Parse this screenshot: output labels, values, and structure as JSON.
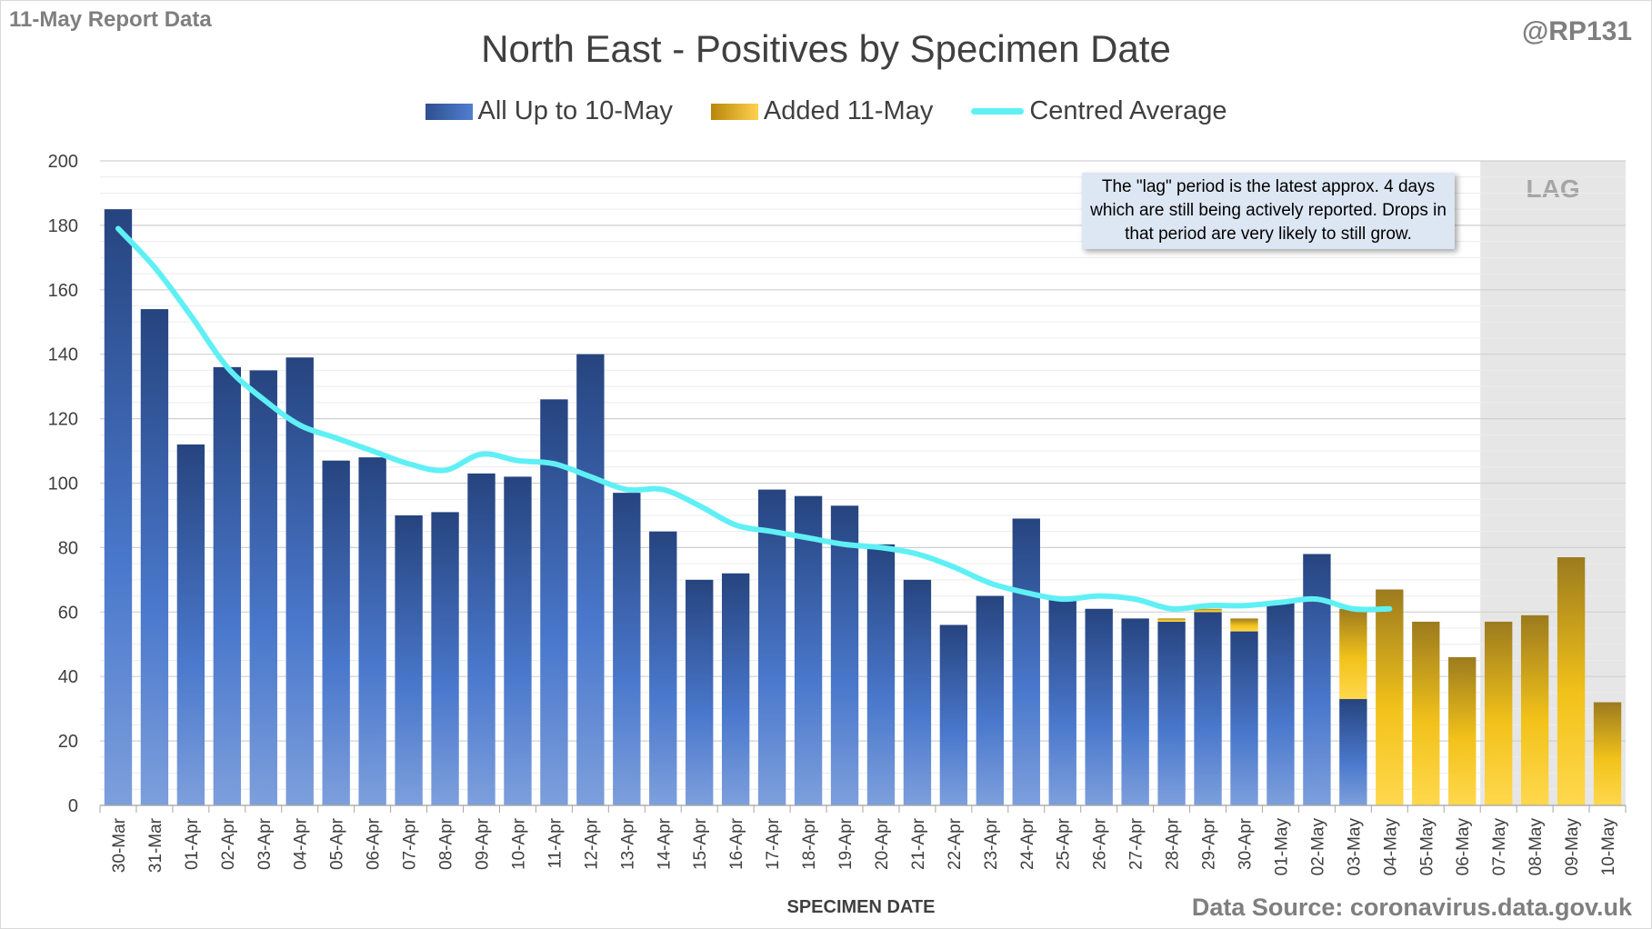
{
  "corner_left": "11-May Report Data",
  "corner_right": "@RP131",
  "source": "Data Source: coronavirus.data.gov.uk",
  "note": "The \"lag\" period is the latest approx. 4 days which are still being actively reported. Drops in that period are very likely to still grow.",
  "colors": {
    "blue_dark": "#2a4a85",
    "blue_light": "#6f96d6",
    "gold_dark": "#a07d1c",
    "gold_light": "#ffd33a",
    "average": "#5ff0f5",
    "lag_shade": "#e6e6e6"
  },
  "chart_data": {
    "type": "bar",
    "title": "North East - Positives by Specimen Date",
    "xlabel": "SPECIMEN DATE",
    "ylabel": "",
    "ylim": [
      0,
      200
    ],
    "yticks": [
      0,
      20,
      40,
      60,
      80,
      100,
      120,
      140,
      160,
      180,
      200
    ],
    "stacked": true,
    "lag_label": "LAG",
    "lag_categories": [
      "07-May",
      "08-May",
      "09-May",
      "10-May"
    ],
    "categories": [
      "30-Mar",
      "31-Mar",
      "01-Apr",
      "02-Apr",
      "03-Apr",
      "04-Apr",
      "05-Apr",
      "06-Apr",
      "07-Apr",
      "08-Apr",
      "09-Apr",
      "10-Apr",
      "11-Apr",
      "12-Apr",
      "13-Apr",
      "14-Apr",
      "15-Apr",
      "16-Apr",
      "17-Apr",
      "18-Apr",
      "19-Apr",
      "20-Apr",
      "21-Apr",
      "22-Apr",
      "23-Apr",
      "24-Apr",
      "25-Apr",
      "26-Apr",
      "27-Apr",
      "28-Apr",
      "29-Apr",
      "30-Apr",
      "01-May",
      "02-May",
      "03-May",
      "04-May",
      "05-May",
      "06-May",
      "07-May",
      "08-May",
      "09-May",
      "10-May"
    ],
    "series": [
      {
        "name": "All Up to 10-May",
        "kind": "bar",
        "values": [
          185,
          154,
          112,
          136,
          135,
          139,
          107,
          108,
          90,
          91,
          103,
          102,
          126,
          140,
          97,
          85,
          70,
          72,
          98,
          96,
          93,
          81,
          70,
          56,
          65,
          89,
          64,
          61,
          58,
          57,
          60,
          54,
          63,
          78,
          33,
          0,
          0,
          0,
          0,
          0,
          0,
          0
        ]
      },
      {
        "name": "Added 11-May",
        "kind": "bar",
        "values": [
          0,
          0,
          0,
          0,
          0,
          0,
          0,
          0,
          0,
          0,
          0,
          0,
          0,
          0,
          0,
          0,
          0,
          0,
          0,
          0,
          0,
          0,
          0,
          0,
          0,
          0,
          0,
          0,
          0,
          1,
          1,
          4,
          0,
          0,
          28,
          67,
          57,
          46,
          57,
          59,
          77,
          32
        ]
      },
      {
        "name": "Centred Average",
        "kind": "line",
        "values": [
          179,
          167,
          152,
          136,
          126,
          118,
          114,
          110,
          106,
          104,
          109,
          107,
          106,
          102,
          98,
          98,
          93,
          87,
          85,
          83,
          81,
          80,
          78,
          74,
          69,
          66,
          64,
          65,
          64,
          61,
          62,
          62,
          63,
          64,
          61,
          61,
          null,
          null,
          null,
          null,
          null,
          null
        ]
      }
    ]
  }
}
